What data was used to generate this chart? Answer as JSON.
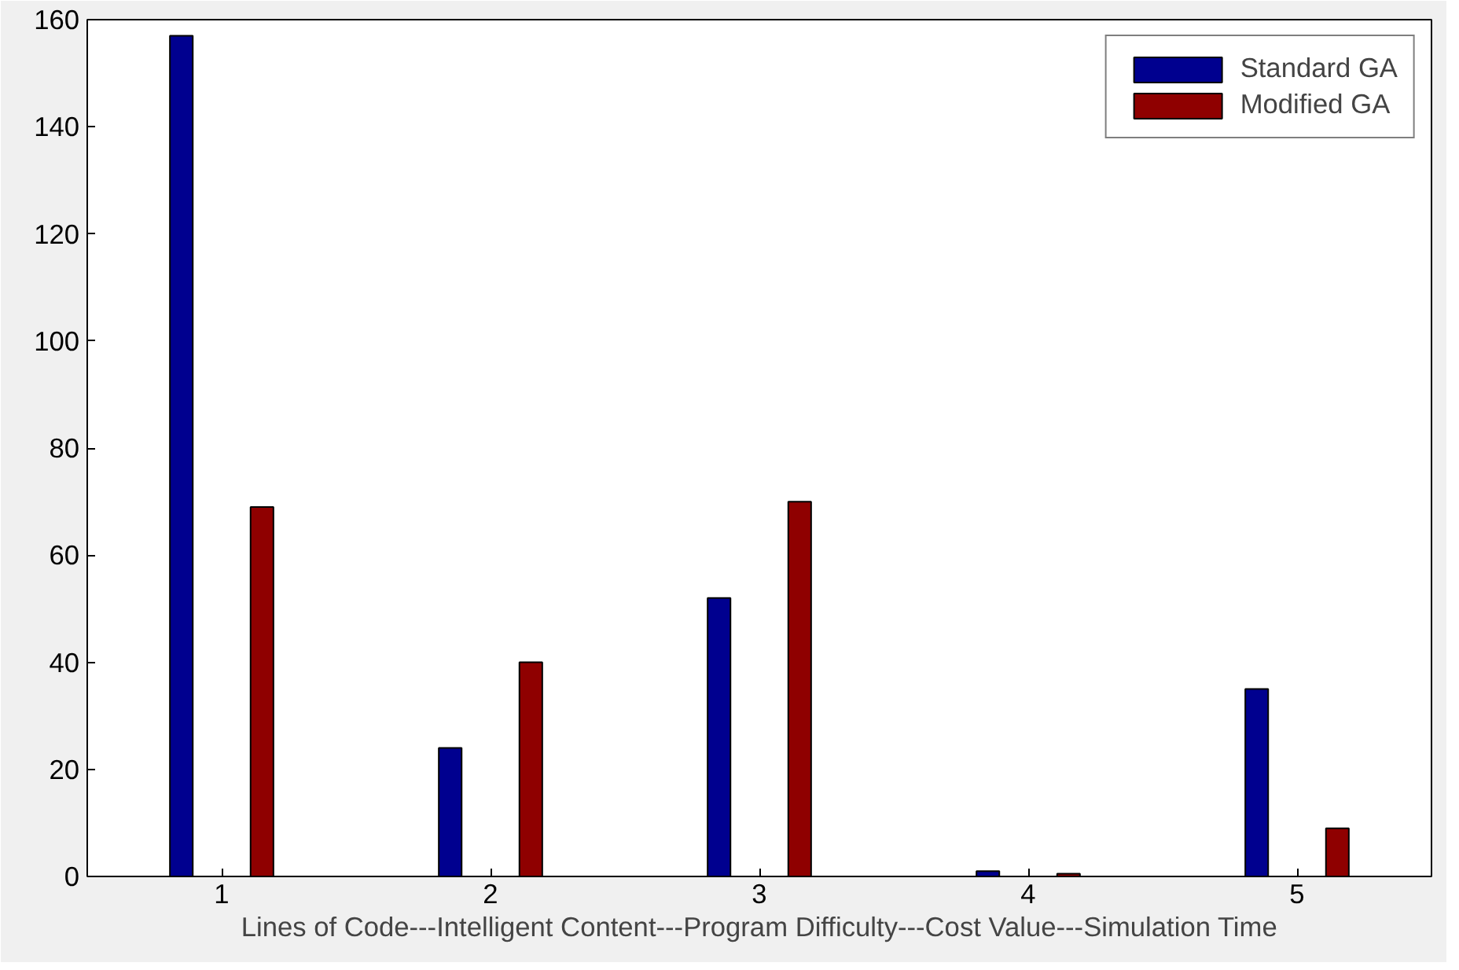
{
  "chart_data": {
    "type": "bar",
    "xlabel": "Lines of Code---Intelligent Content---Program Difficulty---Cost Value---Simulation Time",
    "x": [
      1,
      2,
      3,
      4,
      5
    ],
    "series": [
      {
        "name": "Standard GA",
        "color": "#00008f",
        "values": [
          157,
          24,
          52,
          1,
          35
        ]
      },
      {
        "name": "Modified GA",
        "color": "#8f0000",
        "values": [
          69,
          40,
          70,
          0.5,
          9
        ]
      }
    ],
    "xlim": [
      0.5,
      5.5
    ],
    "xticks": [
      1,
      2,
      3,
      4,
      5
    ],
    "ylim": [
      0,
      160
    ],
    "yticks": [
      0,
      20,
      40,
      60,
      80,
      100,
      120,
      140,
      160
    ],
    "grid": false,
    "legend": "top right"
  }
}
